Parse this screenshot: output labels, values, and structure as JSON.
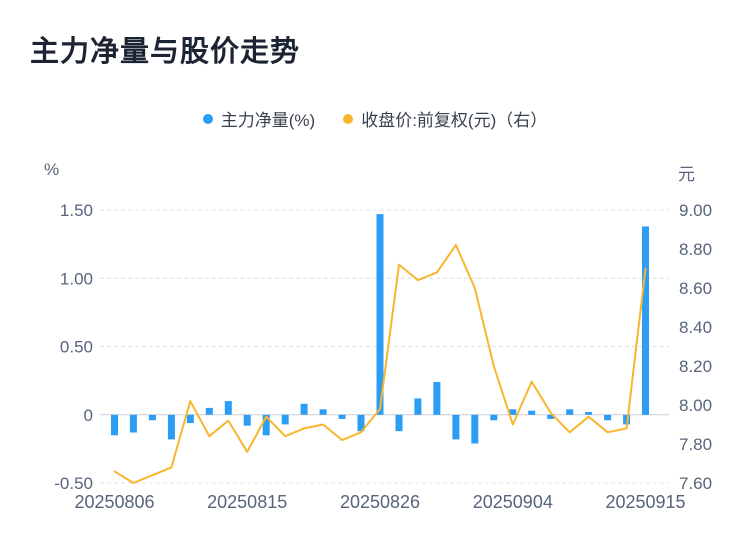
{
  "header": {
    "title": "主力净量与股价走势"
  },
  "legend": {
    "items": [
      {
        "label": "主力净量(%)",
        "color": "#2b9df4"
      },
      {
        "label": "收盘价:前复权(元)（右）",
        "color": "#f8b62d"
      }
    ]
  },
  "chart_data": {
    "type": "bar+line",
    "title": "主力净量与股价走势",
    "left_axis": {
      "label": "%",
      "min": -0.5,
      "max": 1.5,
      "ticks": [
        "1.50",
        "1.00",
        "0.50",
        "0",
        "-0.50"
      ]
    },
    "right_axis": {
      "label": "元",
      "min": 7.6,
      "max": 9.0,
      "ticks": [
        "9.00",
        "8.80",
        "8.60",
        "8.40",
        "8.20",
        "8.00",
        "7.80",
        "7.60"
      ]
    },
    "x_axis": {
      "n_points": 29,
      "tick_indices": [
        0,
        7,
        14,
        21,
        28
      ],
      "tick_labels": [
        "20250806",
        "20250815",
        "20250826",
        "20250904",
        "20250915"
      ]
    },
    "series": [
      {
        "name": "主力净量(%)",
        "type": "bar",
        "axis": "left",
        "color": "#2b9df4",
        "values": [
          -0.15,
          -0.13,
          -0.04,
          -0.18,
          -0.06,
          0.05,
          0.1,
          -0.08,
          -0.15,
          -0.07,
          0.08,
          0.04,
          -0.03,
          -0.12,
          1.47,
          -0.12,
          0.12,
          0.24,
          -0.18,
          -0.21,
          -0.04,
          0.04,
          0.03,
          -0.03,
          0.04,
          0.02,
          -0.04,
          -0.07,
          1.38
        ]
      },
      {
        "name": "收盘价:前复权(元)（右）",
        "type": "line",
        "axis": "right",
        "color": "#f8b62d",
        "values": [
          7.66,
          7.6,
          7.64,
          7.68,
          8.02,
          7.84,
          7.92,
          7.76,
          7.94,
          7.84,
          7.88,
          7.9,
          7.82,
          7.86,
          7.98,
          8.72,
          8.64,
          8.68,
          8.82,
          8.6,
          8.2,
          7.9,
          8.12,
          7.96,
          7.86,
          7.94,
          7.86,
          7.88,
          8.7
        ]
      }
    ],
    "grid": {
      "show": true,
      "dashed": true
    }
  }
}
